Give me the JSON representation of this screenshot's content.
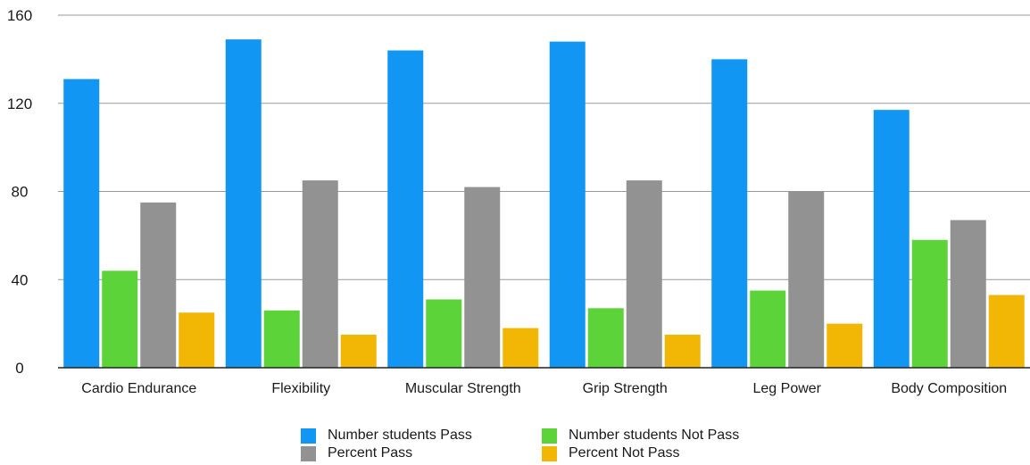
{
  "chart_data": {
    "type": "bar",
    "title": "",
    "xlabel": "",
    "ylabel": "",
    "ylim": [
      0,
      160
    ],
    "yticks": [
      0,
      40,
      80,
      120,
      160
    ],
    "grid": true,
    "legend_position": "bottom",
    "categories": [
      "Cardio Endurance",
      "Flexibility",
      "Muscular Strength",
      "Grip Strength",
      "Leg Power",
      "Body Composition"
    ],
    "series": [
      {
        "name": "Number students Pass",
        "color": "#1296F3",
        "values": [
          131,
          149,
          144,
          148,
          140,
          117
        ]
      },
      {
        "name": "Number students Not Pass",
        "color": "#5DD33A",
        "values": [
          44,
          26,
          31,
          27,
          35,
          58
        ]
      },
      {
        "name": "Percent Pass",
        "color": "#929292",
        "values": [
          75,
          85,
          82,
          85,
          80,
          67
        ]
      },
      {
        "name": "Percent Not Pass",
        "color": "#F2B705",
        "values": [
          25,
          15,
          18,
          15,
          20,
          33
        ]
      }
    ]
  }
}
